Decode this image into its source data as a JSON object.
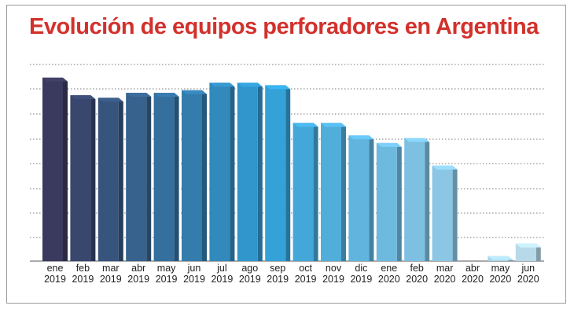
{
  "colors": {
    "title": "#d2312c",
    "grid": "#7a7a7a",
    "frame": "#9a9a9a",
    "bar_gradient_start": "#3a3a5e",
    "bar_gradient_mid": "#2f9fd6",
    "bar_gradient_end": "#b7d9ea"
  },
  "chart_data": {
    "type": "bar",
    "title": "Evolución de equipos perforadores en Argentina",
    "style": "3d-bars",
    "ylim": [
      0,
      72
    ],
    "grid": true,
    "categories": [
      [
        "ene",
        "2019"
      ],
      [
        "feb",
        "2019"
      ],
      [
        "mar",
        "2019"
      ],
      [
        "abr",
        "2019"
      ],
      [
        "may",
        "2019"
      ],
      [
        "jun",
        "2019"
      ],
      [
        "jul",
        "2019"
      ],
      [
        "ago",
        "2019"
      ],
      [
        "sep",
        "2019"
      ],
      [
        "oct",
        "2019"
      ],
      [
        "nov",
        "2019"
      ],
      [
        "dic",
        "2019"
      ],
      [
        "ene",
        "2020"
      ],
      [
        "feb",
        "2020"
      ],
      [
        "mar",
        "2020"
      ],
      [
        "abr",
        "2020"
      ],
      [
        "may",
        "2020"
      ],
      [
        "jun",
        "2020"
      ]
    ],
    "values": [
      73,
      66,
      65,
      67,
      67,
      68,
      71,
      71,
      70,
      55,
      55,
      50,
      47,
      49,
      38,
      0,
      2,
      7
    ]
  }
}
